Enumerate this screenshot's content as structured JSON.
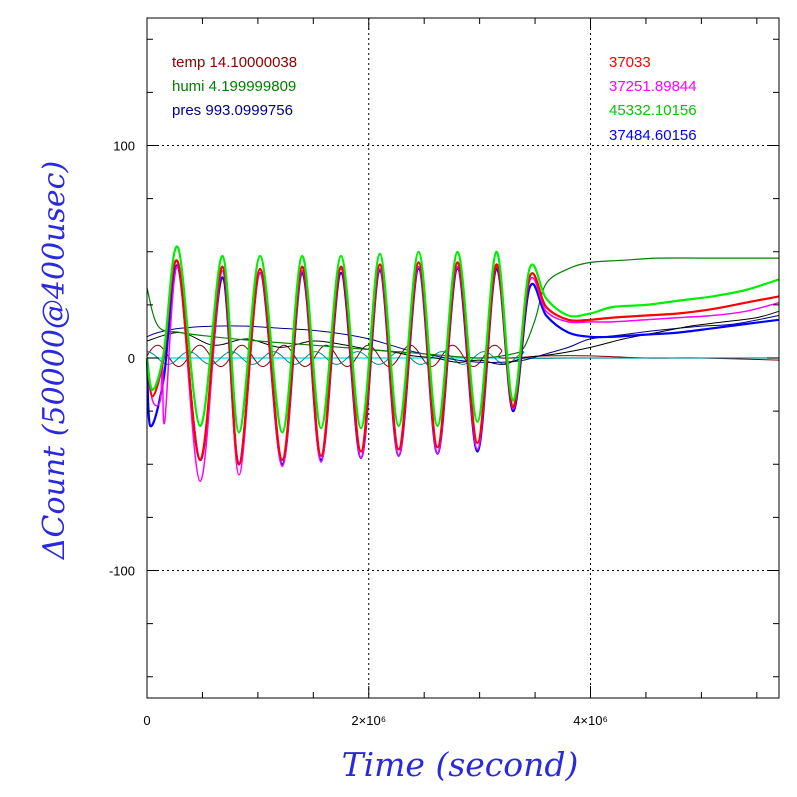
{
  "chart_data": {
    "type": "line",
    "xlabel": "Time (second)",
    "ylabel": "ΔCount (50000@400usec)",
    "xlim": [
      0,
      5700000
    ],
    "ylim": [
      -160,
      160
    ],
    "grid": "dotted",
    "x_ticks": [
      {
        "value": 0,
        "label": "0"
      },
      {
        "value": 2000000,
        "label": "2×10⁶"
      },
      {
        "value": 4000000,
        "label": "4×10⁶"
      }
    ],
    "y_ticks": [
      {
        "value": 100,
        "label": "100"
      },
      {
        "value": 0,
        "label": "0"
      },
      {
        "value": -100,
        "label": "-100"
      }
    ],
    "legend_left": [
      {
        "text": "temp 14.10000038",
        "color": "#8b0000"
      },
      {
        "text": "humi 4.199999809",
        "color": "#008000"
      },
      {
        "text": "pres 993.0999756",
        "color": "#00008b"
      }
    ],
    "legend_right": [
      {
        "text": "37033",
        "color": "#ff0000"
      },
      {
        "text": "37251.89844",
        "color": "#ff00ff"
      },
      {
        "text": "45332.10156",
        "color": "#00e000"
      },
      {
        "text": "37484.60156",
        "color": "#0000ff"
      }
    ],
    "series": [
      {
        "color": "#00ee00",
        "width": 2.2,
        "x": [
          0,
          50000,
          150000,
          280000,
          480000,
          680000,
          830000,
          1020000,
          1220000,
          1400000,
          1570000,
          1750000,
          1930000,
          2100000,
          2270000,
          2450000,
          2620000,
          2800000,
          2980000,
          3150000,
          3300000,
          3450000,
          3600000,
          3800000,
          4000000,
          4200000,
          4500000,
          4800000,
          5100000,
          5400000,
          5700000
        ],
        "y": [
          0,
          -15,
          2,
          52,
          -32,
          48,
          -35,
          48,
          -35,
          48,
          -33,
          48,
          -33,
          49,
          -32,
          50,
          -32,
          50,
          -30,
          50,
          -20,
          42,
          28,
          20,
          21,
          24,
          25,
          27,
          29,
          32,
          37
        ]
      },
      {
        "color": "#ff0000",
        "width": 2.2,
        "x": [
          0,
          50000,
          150000,
          280000,
          480000,
          680000,
          830000,
          1020000,
          1220000,
          1400000,
          1570000,
          1750000,
          1930000,
          2100000,
          2270000,
          2450000,
          2620000,
          2800000,
          2980000,
          3150000,
          3300000,
          3450000,
          3600000,
          3800000,
          4000000,
          4200000,
          4500000,
          4800000,
          5100000,
          5400000,
          5700000
        ],
        "y": [
          0,
          -18,
          0,
          45,
          -48,
          43,
          -50,
          42,
          -48,
          43,
          -46,
          43,
          -44,
          44,
          -43,
          45,
          -42,
          45,
          -40,
          44,
          -23,
          38,
          24,
          18,
          18,
          19,
          20,
          21,
          23,
          26,
          29
        ]
      },
      {
        "color": "#ff00ff",
        "width": 1.5,
        "x": [
          0,
          50000,
          120000,
          140000,
          160000,
          280000,
          480000,
          680000,
          830000,
          1020000,
          1220000,
          1400000,
          1570000,
          1750000,
          1930000,
          2100000,
          2270000,
          2450000,
          2620000,
          2800000,
          2980000,
          3150000,
          3300000,
          3450000,
          3600000,
          3800000,
          4000000,
          4200000,
          4500000,
          4800000,
          5100000,
          5400000,
          5700000
        ],
        "y": [
          0,
          -20,
          -20,
          0,
          -30,
          43,
          -58,
          41,
          -55,
          40,
          -51,
          41,
          -49,
          42,
          -47,
          42,
          -46,
          43,
          -45,
          43,
          -43,
          43,
          -24,
          36,
          22,
          17,
          17,
          17,
          18,
          19,
          20,
          22,
          26
        ]
      },
      {
        "color": "#0000ff",
        "width": 2.2,
        "x": [
          0,
          30000,
          150000,
          280000,
          480000,
          680000,
          830000,
          1020000,
          1220000,
          1400000,
          1570000,
          1750000,
          1930000,
          2100000,
          2270000,
          2450000,
          2620000,
          2800000,
          2980000,
          3150000,
          3300000,
          3450000,
          3600000,
          3800000,
          4000000,
          4200000,
          4500000,
          4800000,
          5100000,
          5400000,
          5700000
        ],
        "y": [
          0,
          -32,
          -10,
          43,
          -48,
          38,
          -50,
          40,
          -50,
          40,
          -48,
          40,
          -47,
          41,
          -46,
          42,
          -45,
          42,
          -44,
          42,
          -25,
          33,
          20,
          12,
          10,
          10,
          11,
          12,
          14,
          16,
          18
        ]
      },
      {
        "color": "#008000",
        "width": 1.2,
        "x": [
          0,
          100000,
          300000,
          600000,
          1000000,
          1500000,
          2000000,
          2500000,
          3000000,
          3300000,
          3400000,
          3500000,
          3600000,
          3800000,
          4000000,
          4300000,
          4600000,
          5000000,
          5400000,
          5700000
        ],
        "y": [
          33,
          15,
          12,
          10,
          8,
          6,
          4,
          2,
          0,
          2,
          5,
          18,
          35,
          42,
          45,
          46,
          47,
          47,
          47,
          47
        ]
      },
      {
        "color": "#000000",
        "width": 1,
        "x": [
          0,
          300000,
          600000,
          900000,
          1200000,
          1500000,
          1800000,
          2000000,
          2200000,
          2400000,
          2600000,
          2800000,
          3000000,
          3200000,
          3400000,
          3700000,
          4000000,
          4300000,
          4600000,
          4900000,
          5200000,
          5500000,
          5700000
        ],
        "y": [
          8,
          12,
          6,
          9,
          5,
          8,
          6,
          4,
          3,
          1,
          0,
          -2,
          -1,
          -3,
          0,
          2,
          5,
          9,
          12,
          15,
          17,
          19,
          22
        ]
      },
      {
        "color": "#00008b",
        "width": 1,
        "x": [
          0,
          100000,
          300000,
          600000,
          900000,
          1200000,
          1500000,
          1800000,
          2000000,
          2200000,
          2400000,
          2600000,
          2800000,
          3000000,
          3200000,
          3400000,
          3600000,
          3800000,
          4000000,
          4300000,
          4600000,
          5000000,
          5300000,
          5700000
        ],
        "y": [
          10,
          12,
          14,
          15,
          15,
          14,
          13,
          11,
          9,
          6,
          3,
          1,
          -1,
          -2,
          -2,
          -1,
          2,
          5,
          9,
          11,
          13,
          15,
          16,
          20
        ]
      },
      {
        "color": "#8b0000",
        "width": 1,
        "oscillation": {
          "amp": 5,
          "period": 380000,
          "phase": 0,
          "until": 3200000,
          "offset": 1
        },
        "x": [
          3200000,
          3600000,
          4000000,
          4500000,
          5000000,
          5700000
        ],
        "y": [
          0,
          1,
          1,
          0,
          0,
          -1
        ]
      },
      {
        "color": "#008b8b",
        "width": 1,
        "oscillation": {
          "amp": 3,
          "period": 380000,
          "phase": 0.5,
          "until": 3400000,
          "offset": 0
        },
        "x": [
          3400000,
          3800000,
          4200000,
          4800000,
          5700000
        ],
        "y": [
          0,
          0,
          0,
          0,
          0
        ]
      },
      {
        "color": "#00e0e0",
        "width": 1.2,
        "x": [
          0,
          5700000
        ],
        "y": [
          0,
          0
        ]
      }
    ]
  }
}
